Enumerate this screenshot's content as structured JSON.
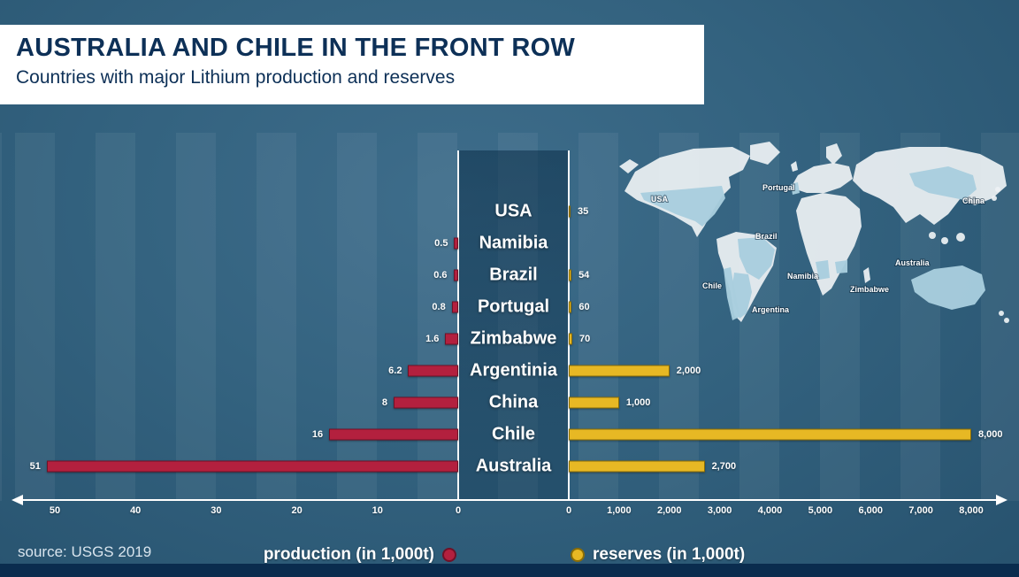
{
  "header": {
    "title": "AUSTRALIA AND CHILE IN THE FRONT ROW",
    "subtitle": "Countries with major Lithium production and reserves"
  },
  "source_note": "source: USGS 2019",
  "legend": {
    "production_label": "production (in 1,000t)",
    "reserves_label": "reserves (in 1,000t)"
  },
  "colors": {
    "production": "#b3203e",
    "production_border": "#6f1127",
    "reserves": "#e7b824",
    "reserves_border": "#8a6d07",
    "background": "#33627f",
    "title_text": "#0d3057"
  },
  "chart_data": {
    "type": "bar",
    "variant": "diverging-horizontal",
    "title": "AUSTRALIA AND CHILE IN THE FRONT ROW",
    "subtitle": "Countries with major Lithium production and reserves",
    "source": "USGS 2019",
    "categories": [
      "USA",
      "Namibia",
      "Brazil",
      "Portugal",
      "Zimbabwe",
      "Argentinia",
      "China",
      "Chile",
      "Australia"
    ],
    "series": [
      {
        "name": "production (in 1,000t)",
        "side": "left",
        "color": "#b3203e",
        "values": [
          null,
          0.5,
          0.6,
          0.8,
          1.6,
          6.2,
          8,
          16,
          51
        ],
        "labels": [
          "",
          "0.5",
          "0.6",
          "0.8",
          "1.6",
          "6.2",
          "8",
          "16",
          "51"
        ],
        "axis_ticks": [
          "50",
          "40",
          "30",
          "20",
          "10",
          "0"
        ],
        "axis_max": 50
      },
      {
        "name": "reserves (in 1,000t)",
        "side": "right",
        "color": "#e7b824",
        "values": [
          35,
          null,
          54,
          60,
          70,
          2000,
          1000,
          8000,
          2700
        ],
        "labels": [
          "35",
          "",
          "54",
          "60",
          "70",
          "2,000",
          "1,000",
          "8,000",
          "2,700"
        ],
        "axis_ticks": [
          "0",
          "1,000",
          "2,000",
          "3,000",
          "4,000",
          "5,000",
          "6,000",
          "7,000",
          "8,000"
        ],
        "axis_max": 8000
      }
    ]
  },
  "map": {
    "labels": [
      "USA",
      "Portugal",
      "Brazil",
      "Chile",
      "Namibia",
      "Argentina",
      "Zimbabwe",
      "Australia",
      "China"
    ]
  }
}
